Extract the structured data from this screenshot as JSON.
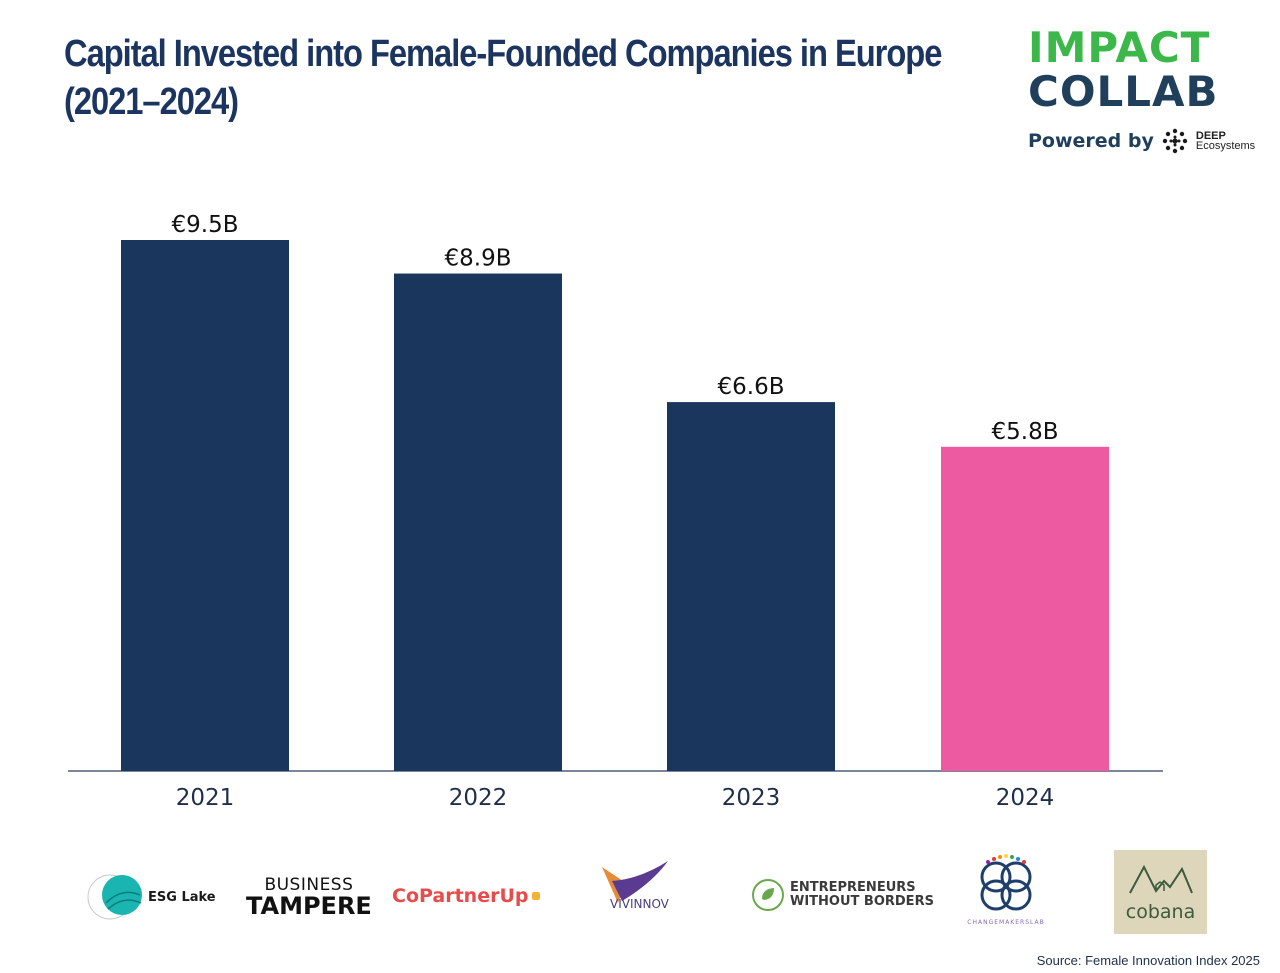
{
  "title": {
    "line1": "Capital Invested into Female-Founded Companies in Europe",
    "line2": "(2021–2024)"
  },
  "brand": {
    "line1": "IMPACT",
    "line2": "COLLAB",
    "powered_by": "Powered by",
    "partner_top": "DEEP",
    "partner_bottom": "Ecosystems",
    "primary_color": "#3cb84a",
    "secondary_color": "#1f3f5b"
  },
  "chart_data": {
    "type": "bar",
    "categories": [
      "2021",
      "2022",
      "2023",
      "2024"
    ],
    "values": [
      9.5,
      8.9,
      6.6,
      5.8
    ],
    "data_labels": [
      "€9.5B",
      "€8.9B",
      "€6.6B",
      "€5.8B"
    ],
    "colors": [
      "#1a365d",
      "#1a365d",
      "#1a365d",
      "#ed5aa1"
    ],
    "title": "Capital Invested into Female-Founded Companies in Europe (2021–2024)",
    "xlabel": "",
    "ylabel": "",
    "ylim": [
      0,
      9.5
    ],
    "grid": false,
    "legend": "none"
  },
  "partners": [
    {
      "name": "ESG Lake",
      "icon": "esg-lake-logo"
    },
    {
      "name_line1": "BUSINESS",
      "name_line2": "TAMPERE",
      "icon": "business-tampere-logo"
    },
    {
      "name": "CoPartnerUp",
      "icon": "copartnerup-logo"
    },
    {
      "name": "VIVINNOV",
      "icon": "vivinnov-logo"
    },
    {
      "name_line1": "ENTREPRENEURS",
      "name_line2": "WITHOUT BORDERS",
      "icon": "entrepreneurs-without-borders-logo"
    },
    {
      "name": "CHANGEMAKERSLAB",
      "icon": "changemakerslab-logo"
    },
    {
      "name": "cobana",
      "icon": "cobana-logo"
    }
  ],
  "source": "Source: Female Innovation Index 2025"
}
